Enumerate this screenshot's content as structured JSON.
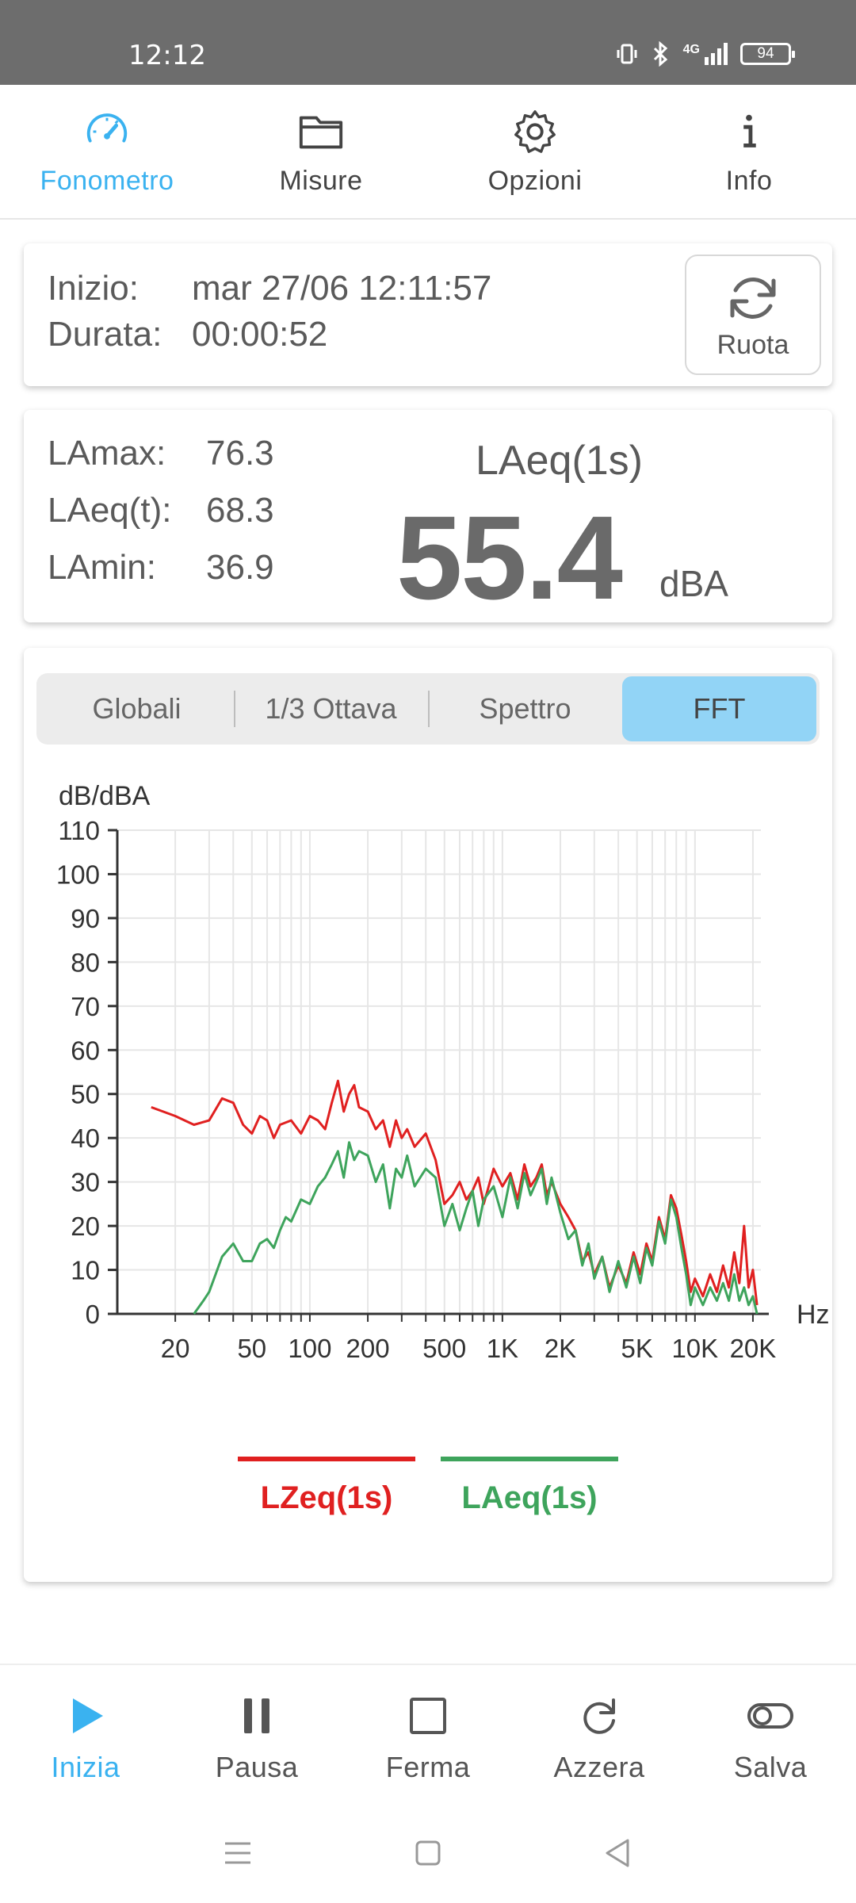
{
  "status_bar": {
    "time": "12:12",
    "network": "4G",
    "battery": "94"
  },
  "top_nav": {
    "tabs": [
      {
        "label": "Fonometro",
        "icon": "speedometer-icon",
        "active": true
      },
      {
        "label": "Misure",
        "icon": "folder-icon",
        "active": false
      },
      {
        "label": "Opzioni",
        "icon": "gear-icon",
        "active": false
      },
      {
        "label": "Info",
        "icon": "info-icon",
        "active": false
      }
    ]
  },
  "session": {
    "start_label": "Inizio:",
    "start_value": "mar 27/06 12:11:57",
    "duration_label": "Durata:",
    "duration_value": "00:00:52",
    "rotate_label": "Ruota"
  },
  "levels": {
    "lamax_label": "LAmax:",
    "lamax_value": "76.3",
    "laeq_t_label": "LAeq(t):",
    "laeq_t_value": "68.3",
    "lamin_label": "LAmin:",
    "lamin_value": "36.9",
    "current_label": "LAeq(1s)",
    "current_value": "55.4",
    "unit": "dBA"
  },
  "view_tabs": [
    {
      "label": "Globali",
      "selected": false
    },
    {
      "label": "1/3 Ottava",
      "selected": false
    },
    {
      "label": "Spettro",
      "selected": false
    },
    {
      "label": "FFT",
      "selected": true
    }
  ],
  "chart_data": {
    "type": "line",
    "ylabel": "dB/dBA",
    "xlabel": "Hz",
    "x_scale": "log",
    "xlim": [
      10,
      22000
    ],
    "ylim": [
      0,
      110
    ],
    "grid": true,
    "yticks": [
      0,
      10,
      20,
      30,
      40,
      50,
      60,
      70,
      80,
      90,
      100,
      110
    ],
    "xticks": [
      {
        "value": 20,
        "label": "20"
      },
      {
        "value": 50,
        "label": "50"
      },
      {
        "value": 100,
        "label": "100"
      },
      {
        "value": 200,
        "label": "200"
      },
      {
        "value": 500,
        "label": "500"
      },
      {
        "value": 1000,
        "label": "1K"
      },
      {
        "value": 2000,
        "label": "2K"
      },
      {
        "value": 5000,
        "label": "5K"
      },
      {
        "value": 10000,
        "label": "10K"
      },
      {
        "value": 20000,
        "label": "20K"
      }
    ],
    "series": [
      {
        "name": "LZeq(1s)",
        "color": "#e02020",
        "points": [
          [
            15,
            47
          ],
          [
            20,
            45
          ],
          [
            25,
            43
          ],
          [
            30,
            44
          ],
          [
            35,
            49
          ],
          [
            40,
            48
          ],
          [
            45,
            43
          ],
          [
            50,
            41
          ],
          [
            55,
            45
          ],
          [
            60,
            44
          ],
          [
            65,
            40
          ],
          [
            70,
            43
          ],
          [
            80,
            44
          ],
          [
            90,
            41
          ],
          [
            100,
            45
          ],
          [
            110,
            44
          ],
          [
            120,
            42
          ],
          [
            130,
            48
          ],
          [
            140,
            53
          ],
          [
            150,
            46
          ],
          [
            160,
            50
          ],
          [
            170,
            52
          ],
          [
            180,
            47
          ],
          [
            200,
            46
          ],
          [
            220,
            42
          ],
          [
            240,
            44
          ],
          [
            260,
            38
          ],
          [
            280,
            44
          ],
          [
            300,
            40
          ],
          [
            320,
            42
          ],
          [
            350,
            38
          ],
          [
            400,
            41
          ],
          [
            450,
            35
          ],
          [
            500,
            25
          ],
          [
            550,
            27
          ],
          [
            600,
            30
          ],
          [
            650,
            26
          ],
          [
            700,
            28
          ],
          [
            750,
            31
          ],
          [
            800,
            25
          ],
          [
            900,
            33
          ],
          [
            1000,
            29
          ],
          [
            1100,
            32
          ],
          [
            1200,
            26
          ],
          [
            1300,
            34
          ],
          [
            1400,
            29
          ],
          [
            1500,
            31
          ],
          [
            1600,
            34
          ],
          [
            1700,
            27
          ],
          [
            1800,
            30
          ],
          [
            2000,
            25
          ],
          [
            2200,
            22
          ],
          [
            2400,
            19
          ],
          [
            2600,
            12
          ],
          [
            2800,
            14
          ],
          [
            3000,
            9
          ],
          [
            3300,
            13
          ],
          [
            3600,
            6
          ],
          [
            4000,
            11
          ],
          [
            4400,
            7
          ],
          [
            4800,
            14
          ],
          [
            5200,
            9
          ],
          [
            5600,
            16
          ],
          [
            6000,
            12
          ],
          [
            6500,
            22
          ],
          [
            7000,
            17
          ],
          [
            7500,
            27
          ],
          [
            8000,
            24
          ],
          [
            8500,
            18
          ],
          [
            9000,
            12
          ],
          [
            9500,
            5
          ],
          [
            10000,
            8
          ],
          [
            11000,
            4
          ],
          [
            12000,
            9
          ],
          [
            13000,
            5
          ],
          [
            14000,
            11
          ],
          [
            15000,
            6
          ],
          [
            16000,
            14
          ],
          [
            17000,
            7
          ],
          [
            18000,
            20
          ],
          [
            19000,
            6
          ],
          [
            20000,
            10
          ],
          [
            21000,
            2
          ]
        ]
      },
      {
        "name": "LAeq(1s)",
        "color": "#3ea45c",
        "points": [
          [
            25,
            0
          ],
          [
            28,
            3
          ],
          [
            30,
            5
          ],
          [
            35,
            13
          ],
          [
            40,
            16
          ],
          [
            45,
            12
          ],
          [
            50,
            12
          ],
          [
            55,
            16
          ],
          [
            60,
            17
          ],
          [
            65,
            15
          ],
          [
            70,
            19
          ],
          [
            75,
            22
          ],
          [
            80,
            21
          ],
          [
            90,
            26
          ],
          [
            100,
            25
          ],
          [
            110,
            29
          ],
          [
            120,
            31
          ],
          [
            130,
            34
          ],
          [
            140,
            37
          ],
          [
            150,
            31
          ],
          [
            160,
            39
          ],
          [
            170,
            35
          ],
          [
            180,
            37
          ],
          [
            200,
            36
          ],
          [
            220,
            30
          ],
          [
            240,
            34
          ],
          [
            260,
            24
          ],
          [
            280,
            33
          ],
          [
            300,
            31
          ],
          [
            320,
            36
          ],
          [
            350,
            29
          ],
          [
            400,
            33
          ],
          [
            450,
            31
          ],
          [
            500,
            20
          ],
          [
            550,
            25
          ],
          [
            600,
            19
          ],
          [
            650,
            24
          ],
          [
            700,
            28
          ],
          [
            750,
            20
          ],
          [
            800,
            26
          ],
          [
            900,
            29
          ],
          [
            1000,
            22
          ],
          [
            1100,
            31
          ],
          [
            1200,
            24
          ],
          [
            1300,
            32
          ],
          [
            1400,
            27
          ],
          [
            1500,
            30
          ],
          [
            1600,
            33
          ],
          [
            1700,
            25
          ],
          [
            1800,
            31
          ],
          [
            2000,
            23
          ],
          [
            2200,
            17
          ],
          [
            2400,
            19
          ],
          [
            2600,
            11
          ],
          [
            2800,
            16
          ],
          [
            3000,
            8
          ],
          [
            3300,
            13
          ],
          [
            3600,
            5
          ],
          [
            4000,
            12
          ],
          [
            4400,
            6
          ],
          [
            4800,
            13
          ],
          [
            5200,
            7
          ],
          [
            5600,
            15
          ],
          [
            6000,
            11
          ],
          [
            6500,
            21
          ],
          [
            7000,
            16
          ],
          [
            7500,
            26
          ],
          [
            8000,
            22
          ],
          [
            8500,
            15
          ],
          [
            9000,
            9
          ],
          [
            9500,
            2
          ],
          [
            10000,
            6
          ],
          [
            11000,
            2
          ],
          [
            12000,
            6
          ],
          [
            13000,
            3
          ],
          [
            14000,
            7
          ],
          [
            15000,
            3
          ],
          [
            16000,
            9
          ],
          [
            17000,
            3
          ],
          [
            18000,
            6
          ],
          [
            19000,
            2
          ],
          [
            20000,
            4
          ],
          [
            21000,
            0
          ]
        ]
      }
    ]
  },
  "bottom_nav": {
    "buttons": [
      {
        "label": "Inizia",
        "icon": "play-icon",
        "active": true
      },
      {
        "label": "Pausa",
        "icon": "pause-icon",
        "active": false
      },
      {
        "label": "Ferma",
        "icon": "stop-icon",
        "active": false
      },
      {
        "label": "Azzera",
        "icon": "reset-icon",
        "active": false
      },
      {
        "label": "Salva",
        "icon": "toggle-icon",
        "active": false
      }
    ]
  }
}
